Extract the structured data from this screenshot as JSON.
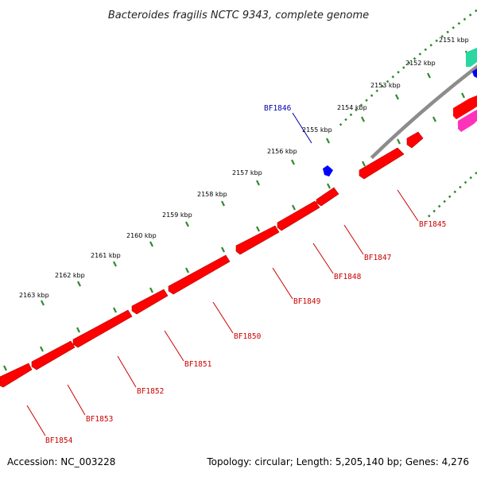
{
  "title": "Bacteroides fragilis NCTC 9343, complete genome",
  "footer": {
    "accession": "Accession: NC_003228",
    "summary": "Topology: circular; Length: 5,205,140 bp; Genes: 4,276"
  },
  "colors": {
    "backbone": "#8c8c8c",
    "ruler": "#2e8b2e",
    "reverse_gene": "#ff0000",
    "forward_gene": "#0000ff",
    "forward_label": "#0000aa",
    "reverse_label": "#cc0000",
    "other_gene_teal": "#2bd6a0",
    "other_gene_pink": "#ff33bb"
  },
  "ruler_ticks": [
    {
      "label": "2151 kbp"
    },
    {
      "label": "2152 kbp"
    },
    {
      "label": "2153 kbp"
    },
    {
      "label": "2154 kbp"
    },
    {
      "label": "2155 kbp"
    },
    {
      "label": "2156 kbp"
    },
    {
      "label": "2157 kbp"
    },
    {
      "label": "2158 kbp"
    },
    {
      "label": "2159 kbp"
    },
    {
      "label": "2160 kbp"
    },
    {
      "label": "2161 kbp"
    },
    {
      "label": "2162 kbp"
    },
    {
      "label": "2163 kbp"
    }
  ],
  "forward_genes": [
    {
      "label": "BF1846"
    }
  ],
  "reverse_genes": [
    {
      "label": "BF1845"
    },
    {
      "label": "BF1847"
    },
    {
      "label": "BF1848"
    },
    {
      "label": "BF1849"
    },
    {
      "label": "BF1850"
    },
    {
      "label": "BF1851"
    },
    {
      "label": "BF1852"
    },
    {
      "label": "BF1853"
    },
    {
      "label": "BF1854"
    }
  ]
}
